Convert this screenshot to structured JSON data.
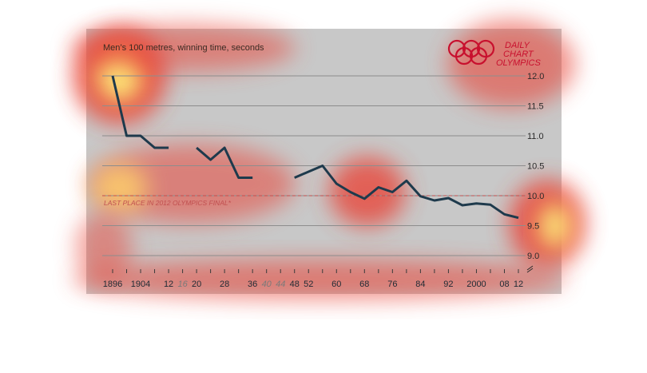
{
  "header": {
    "subtitle": "Men’s 100 metres, winning time, seconds"
  },
  "logo": {
    "line1": "DAILY",
    "line2": "CHART",
    "line3": "OLYMPICS"
  },
  "annotation": {
    "label": "LAST PLACE IN 2012 OLYMPICS FINAL*",
    "value": 10.0
  },
  "colors": {
    "plot_bg": "#c8c8c8",
    "line": "#1e3a4c",
    "grid": "#8d8d8d",
    "reference": "#c05050",
    "brand_red": "#c8102e",
    "cancelled_tick": "#7a7a7a",
    "tick": "#1e2a33"
  },
  "chart_data": {
    "type": "line",
    "ylim": [
      9.0,
      12.0
    ],
    "yticks": [
      12.0,
      11.5,
      11.0,
      10.5,
      10.0,
      9.5,
      9.0
    ],
    "xlim": [
      1896,
      2012
    ],
    "grid": "horizontal",
    "x_tick_labels": [
      {
        "year": 1896,
        "label": "1896",
        "cancelled": false
      },
      {
        "year": 1904,
        "label": "1904",
        "cancelled": false
      },
      {
        "year": 1912,
        "label": "12",
        "cancelled": false
      },
      {
        "year": 1916,
        "label": "16",
        "cancelled": true
      },
      {
        "year": 1920,
        "label": "20",
        "cancelled": false
      },
      {
        "year": 1928,
        "label": "28",
        "cancelled": false
      },
      {
        "year": 1936,
        "label": "36",
        "cancelled": false
      },
      {
        "year": 1940,
        "label": "40",
        "cancelled": true
      },
      {
        "year": 1944,
        "label": "44",
        "cancelled": true
      },
      {
        "year": 1948,
        "label": "48",
        "cancelled": false
      },
      {
        "year": 1952,
        "label": "52",
        "cancelled": false
      },
      {
        "year": 1960,
        "label": "60",
        "cancelled": false
      },
      {
        "year": 1968,
        "label": "68",
        "cancelled": false
      },
      {
        "year": 1976,
        "label": "76",
        "cancelled": false
      },
      {
        "year": 1984,
        "label": "84",
        "cancelled": false
      },
      {
        "year": 1992,
        "label": "92",
        "cancelled": false
      },
      {
        "year": 2000,
        "label": "2000",
        "cancelled": false
      },
      {
        "year": 2008,
        "label": "08",
        "cancelled": false
      },
      {
        "year": 2012,
        "label": "12",
        "cancelled": false
      }
    ],
    "segments": [
      {
        "points": [
          [
            1896,
            12.0
          ],
          [
            1900,
            11.0
          ],
          [
            1904,
            11.0
          ],
          [
            1908,
            10.8
          ],
          [
            1912,
            10.8
          ]
        ]
      },
      {
        "points": [
          [
            1920,
            10.8
          ],
          [
            1924,
            10.6
          ],
          [
            1928,
            10.8
          ],
          [
            1932,
            10.3
          ],
          [
            1936,
            10.3
          ]
        ]
      },
      {
        "points": [
          [
            1948,
            10.3
          ],
          [
            1952,
            10.4
          ],
          [
            1956,
            10.5
          ],
          [
            1960,
            10.2
          ],
          [
            1964,
            10.06
          ],
          [
            1968,
            9.95
          ],
          [
            1972,
            10.14
          ],
          [
            1976,
            10.06
          ],
          [
            1980,
            10.25
          ],
          [
            1984,
            9.99
          ],
          [
            1988,
            9.92
          ],
          [
            1992,
            9.96
          ],
          [
            1996,
            9.84
          ],
          [
            2000,
            9.87
          ],
          [
            2004,
            9.85
          ],
          [
            2008,
            9.69
          ],
          [
            2012,
            9.63
          ]
        ]
      }
    ]
  }
}
